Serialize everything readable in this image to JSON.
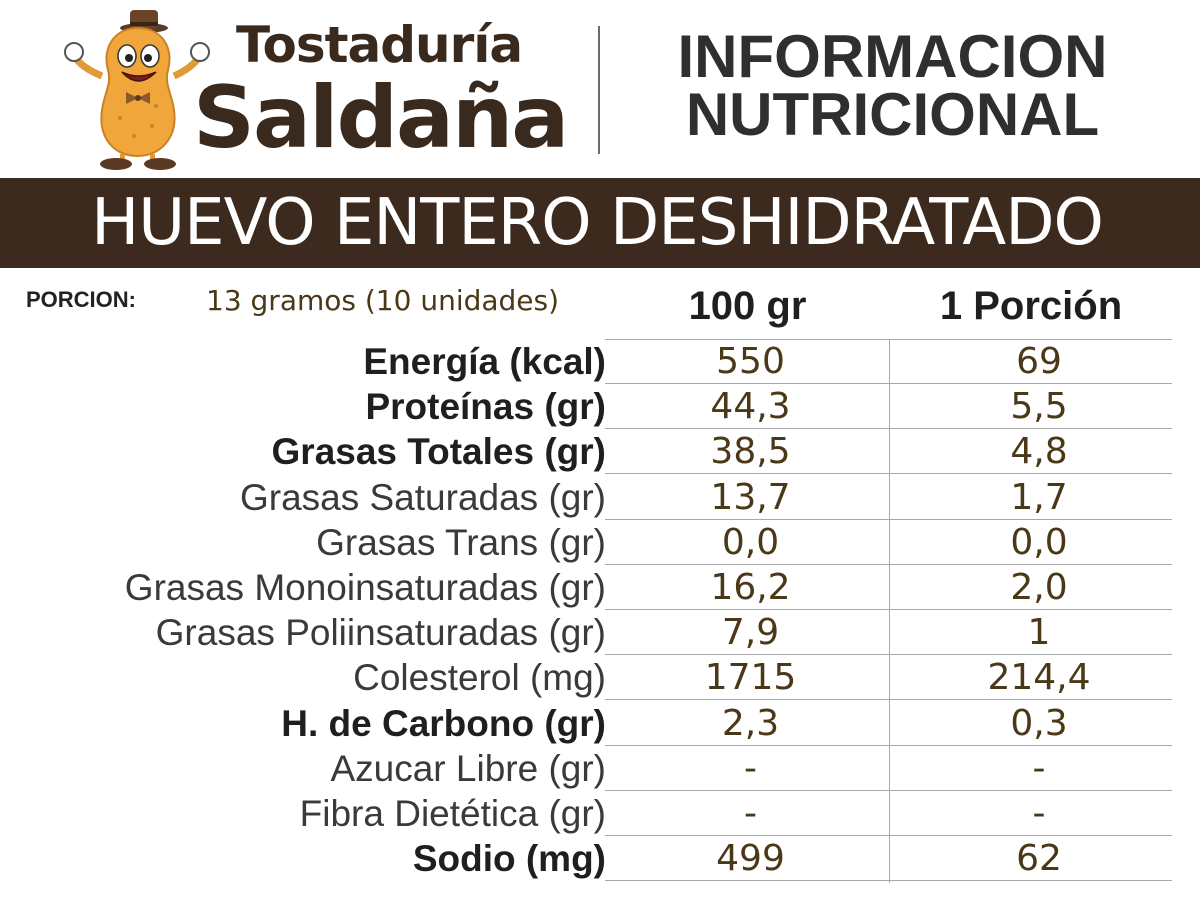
{
  "brand": {
    "line1": "Tostaduría",
    "line2": "Saldaña"
  },
  "header": {
    "title_line1": "INFORMACION",
    "title_line2": "NUTRICIONAL"
  },
  "product": {
    "name": "HUEVO ENTERO DESHIDRATADO"
  },
  "serving": {
    "label": "PORCION:",
    "value": "13 gramos (10 unidades)"
  },
  "columns": {
    "per100": "100 gr",
    "perPortion": "1 Porción"
  },
  "rows": [
    {
      "label": "Energía (kcal)",
      "bold": true,
      "per100": "550",
      "perPortion": "69"
    },
    {
      "label": "Proteínas (gr)",
      "bold": true,
      "per100": "44,3",
      "perPortion": "5,5"
    },
    {
      "label": "Grasas Totales (gr)",
      "bold": true,
      "per100": "38,5",
      "perPortion": "4,8"
    },
    {
      "label": "Grasas Saturadas (gr)",
      "bold": false,
      "per100": "13,7",
      "perPortion": "1,7"
    },
    {
      "label": "Grasas Trans (gr)",
      "bold": false,
      "per100": "0,0",
      "perPortion": "0,0"
    },
    {
      "label": "Grasas Monoinsaturadas (gr)",
      "bold": false,
      "per100": "16,2",
      "perPortion": "2,0"
    },
    {
      "label": "Grasas Poliinsaturadas (gr)",
      "bold": false,
      "per100": "7,9",
      "perPortion": "1"
    },
    {
      "label": "Colesterol (mg)",
      "bold": false,
      "per100": "1715",
      "perPortion": "214,4"
    },
    {
      "label": "H. de Carbono (gr)",
      "bold": true,
      "per100": "2,3",
      "perPortion": "0,3"
    },
    {
      "label": "Azucar Libre (gr)",
      "bold": false,
      "per100": "-",
      "perPortion": "-"
    },
    {
      "label": "Fibra Dietética (gr)",
      "bold": false,
      "per100": "-",
      "perPortion": "-"
    },
    {
      "label": "Sodio (mg)",
      "bold": true,
      "per100": "499",
      "perPortion": "62"
    }
  ],
  "colors": {
    "brown": "#3c2a1e",
    "value_text": "#4a3818",
    "mascot_body": "#f0a63a"
  },
  "icons": {
    "mascot": "peanut-mascot-icon"
  }
}
